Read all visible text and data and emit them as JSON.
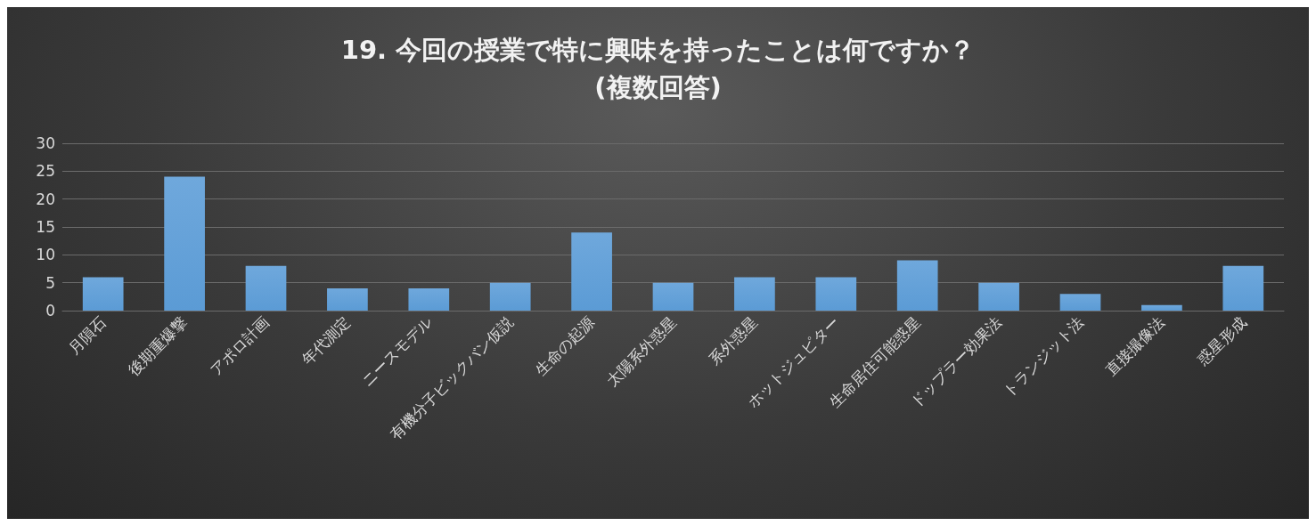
{
  "chart_data": {
    "type": "bar",
    "title": "19. 今回の授業で特に興味を持ったことは何ですか？\n(複数回答)",
    "categories": [
      "月隕石",
      "後期重爆撃",
      "アポロ計画",
      "年代測定",
      "ニースモデル",
      "有機分子ビックバン仮説",
      "生命の起源",
      "太陽系外惑星",
      "系外惑星",
      "ホットジュピター",
      "生命居住可能惑星",
      "ドップラー効果法",
      "トランジット法",
      "直接撮像法",
      "惑星形成"
    ],
    "values": [
      6,
      24,
      8,
      4,
      4,
      5,
      14,
      5,
      6,
      6,
      9,
      5,
      3,
      1,
      8
    ],
    "color": "#5b9bd5",
    "ylim": [
      0,
      30
    ],
    "yticks": [
      0,
      5,
      10,
      15,
      20,
      25,
      30
    ],
    "grid": "y"
  }
}
